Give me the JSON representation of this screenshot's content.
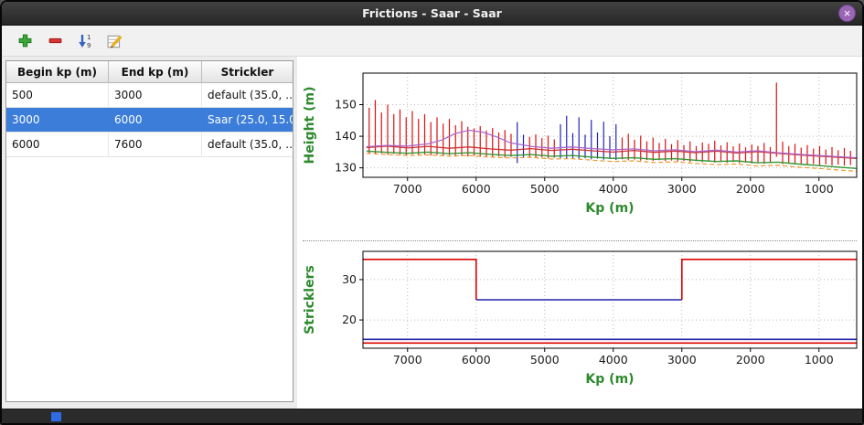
{
  "window": {
    "title": "Frictions - Saar - Saar",
    "close_glyph": "×"
  },
  "toolbar": {
    "sort_digits": [
      "1",
      "9"
    ]
  },
  "table": {
    "columns": [
      "Begin kp (m)",
      "End kp (m)",
      "Strickler"
    ],
    "rows": [
      {
        "begin": "500",
        "end": "3000",
        "strickler": "default (35.0, …",
        "selected": false
      },
      {
        "begin": "3000",
        "end": "6000",
        "strickler": "Saar (25.0, 15.0)",
        "selected": true
      },
      {
        "begin": "6000",
        "end": "7600",
        "strickler": "default (35.0, …",
        "selected": false
      }
    ]
  },
  "colors": {
    "selection": "#3b7dd8",
    "axis_label": "#2d8a2d",
    "spike_red": "#dd1111",
    "spike_blue": "#2222bb"
  },
  "chart_data": [
    {
      "type": "line",
      "title": "",
      "xlabel": "Kp (m)",
      "ylabel": "Height (m)",
      "xlim": [
        7650,
        450
      ],
      "ylim": [
        127,
        160
      ],
      "x_ticks": [
        7000,
        6000,
        5000,
        4000,
        3000,
        2000,
        1000
      ],
      "y_ticks": [
        130,
        140,
        150
      ],
      "grid": true,
      "legend": "none",
      "spike_colors": {
        "r": "#dd1111",
        "b": "#2222bb"
      },
      "spikes": [
        [
          7560,
          134.5,
          149.0,
          "r"
        ],
        [
          7470,
          134.3,
          151.5,
          "r"
        ],
        [
          7380,
          134.6,
          147.5,
          "r"
        ],
        [
          7290,
          134.2,
          150.0,
          "r"
        ],
        [
          7200,
          134.4,
          147.0,
          "r"
        ],
        [
          7110,
          134.2,
          148.5,
          "r"
        ],
        [
          7020,
          134.0,
          146.0,
          "r"
        ],
        [
          6930,
          134.3,
          148.0,
          "r"
        ],
        [
          6840,
          134.0,
          145.5,
          "r"
        ],
        [
          6750,
          134.2,
          147.0,
          "r"
        ],
        [
          6660,
          133.9,
          144.5,
          "r"
        ],
        [
          6570,
          134.1,
          146.0,
          "r"
        ],
        [
          6480,
          133.8,
          144.0,
          "r"
        ],
        [
          6390,
          134.0,
          145.5,
          "r"
        ],
        [
          6300,
          133.7,
          143.5,
          "r"
        ],
        [
          6210,
          133.9,
          144.8,
          "r"
        ],
        [
          6120,
          133.6,
          143.0,
          "r"
        ],
        [
          6030,
          133.8,
          142.5,
          "r"
        ],
        [
          5940,
          133.5,
          143.2,
          "r"
        ],
        [
          5850,
          133.7,
          141.8,
          "r"
        ],
        [
          5760,
          133.4,
          142.6,
          "r"
        ],
        [
          5670,
          133.6,
          141.2,
          "r"
        ],
        [
          5580,
          133.3,
          142.0,
          "r"
        ],
        [
          5490,
          133.5,
          140.8,
          "r"
        ],
        [
          5400,
          131.5,
          144.5,
          "b"
        ],
        [
          5310,
          133.2,
          140.5,
          "b"
        ],
        [
          5220,
          133.4,
          139.8,
          "r"
        ],
        [
          5130,
          133.1,
          140.6,
          "r"
        ],
        [
          5040,
          133.3,
          139.4,
          "r"
        ],
        [
          4950,
          133.0,
          140.2,
          "r"
        ],
        [
          4860,
          133.2,
          139.0,
          "r"
        ],
        [
          4770,
          133.0,
          143.8,
          "b"
        ],
        [
          4680,
          132.9,
          146.5,
          "b"
        ],
        [
          4590,
          133.1,
          141.0,
          "b"
        ],
        [
          4500,
          132.8,
          146.0,
          "b"
        ],
        [
          4410,
          133.0,
          140.5,
          "b"
        ],
        [
          4320,
          132.7,
          145.2,
          "b"
        ],
        [
          4230,
          132.9,
          141.2,
          "b"
        ],
        [
          4140,
          132.6,
          144.6,
          "b"
        ],
        [
          4050,
          132.8,
          140.0,
          "b"
        ],
        [
          3960,
          132.5,
          143.8,
          "b"
        ],
        [
          3870,
          132.7,
          139.6,
          "r"
        ],
        [
          3780,
          132.4,
          140.8,
          "r"
        ],
        [
          3690,
          132.6,
          138.9,
          "r"
        ],
        [
          3600,
          132.3,
          140.2,
          "r"
        ],
        [
          3510,
          132.5,
          138.4,
          "r"
        ],
        [
          3420,
          132.2,
          139.6,
          "r"
        ],
        [
          3330,
          132.4,
          137.9,
          "r"
        ],
        [
          3240,
          132.1,
          139.2,
          "r"
        ],
        [
          3150,
          132.3,
          137.5,
          "r"
        ],
        [
          3060,
          132.0,
          138.8,
          "r"
        ],
        [
          2970,
          132.2,
          137.2,
          "r"
        ],
        [
          2880,
          131.9,
          138.4,
          "r"
        ],
        [
          2790,
          132.1,
          136.9,
          "r"
        ],
        [
          2700,
          131.8,
          138.0,
          "r"
        ],
        [
          2610,
          132.0,
          137.6,
          "r"
        ],
        [
          2520,
          131.7,
          138.6,
          "r"
        ],
        [
          2430,
          131.9,
          137.1,
          "r"
        ],
        [
          2340,
          131.6,
          138.1,
          "r"
        ],
        [
          2250,
          131.8,
          136.8,
          "r"
        ],
        [
          2160,
          131.5,
          137.7,
          "r"
        ],
        [
          2070,
          131.7,
          136.5,
          "r"
        ],
        [
          1980,
          131.4,
          137.4,
          "r"
        ],
        [
          1890,
          131.6,
          136.9,
          "r"
        ],
        [
          1800,
          131.3,
          137.9,
          "r"
        ],
        [
          1710,
          131.5,
          136.6,
          "r"
        ],
        [
          1620,
          133.5,
          157.0,
          "r"
        ],
        [
          1530,
          131.2,
          138.3,
          "r"
        ],
        [
          1440,
          131.4,
          136.9,
          "r"
        ],
        [
          1350,
          131.1,
          137.6,
          "r"
        ],
        [
          1260,
          131.3,
          136.4,
          "r"
        ],
        [
          1170,
          131.0,
          137.2,
          "r"
        ],
        [
          1080,
          131.2,
          136.1,
          "r"
        ],
        [
          990,
          130.9,
          136.9,
          "r"
        ],
        [
          900,
          131.1,
          135.8,
          "r"
        ],
        [
          810,
          130.8,
          136.6,
          "r"
        ],
        [
          720,
          131.0,
          135.6,
          "r"
        ],
        [
          630,
          130.7,
          136.3,
          "r"
        ],
        [
          540,
          130.9,
          135.4,
          "r"
        ]
      ],
      "lines": [
        {
          "name": "red-profile",
          "color": "#cc3333",
          "width": 1.3,
          "dash": false,
          "points": [
            [
              7600,
              136.4
            ],
            [
              7300,
              136.9
            ],
            [
              7000,
              136.3
            ],
            [
              6700,
              136.8
            ],
            [
              6400,
              136.2
            ],
            [
              6100,
              136.6
            ],
            [
              5800,
              136.0
            ],
            [
              5500,
              135.6
            ],
            [
              5200,
              136.1
            ],
            [
              4900,
              135.5
            ],
            [
              4600,
              135.9
            ],
            [
              4300,
              135.4
            ],
            [
              4000,
              135.0
            ],
            [
              3700,
              135.5
            ],
            [
              3400,
              134.9
            ],
            [
              3100,
              135.3
            ],
            [
              2800,
              134.8
            ],
            [
              2500,
              135.3
            ],
            [
              2200,
              134.7
            ],
            [
              1900,
              135.1
            ],
            [
              1600,
              134.6
            ],
            [
              1300,
              134.1
            ],
            [
              1000,
              133.7
            ],
            [
              700,
              133.3
            ],
            [
              450,
              133.0
            ]
          ]
        },
        {
          "name": "purple-profile",
          "color": "#aa66cc",
          "width": 1.3,
          "dash": false,
          "points": [
            [
              7600,
              136.7
            ],
            [
              7300,
              137.1
            ],
            [
              7000,
              136.9
            ],
            [
              6700,
              137.6
            ],
            [
              6500,
              138.8
            ],
            [
              6300,
              140.9
            ],
            [
              6100,
              141.9
            ],
            [
              5900,
              141.3
            ],
            [
              5700,
              139.8
            ],
            [
              5500,
              137.9
            ],
            [
              5200,
              136.8
            ],
            [
              4900,
              136.2
            ],
            [
              4600,
              136.6
            ],
            [
              4300,
              136.1
            ],
            [
              4000,
              135.7
            ],
            [
              3700,
              136.0
            ],
            [
              3400,
              135.4
            ],
            [
              3100,
              135.7
            ],
            [
              2800,
              135.1
            ],
            [
              2500,
              135.6
            ],
            [
              2200,
              135.0
            ],
            [
              1900,
              135.4
            ],
            [
              1600,
              134.8
            ],
            [
              1300,
              134.3
            ],
            [
              1000,
              133.9
            ],
            [
              700,
              133.5
            ],
            [
              450,
              133.2
            ]
          ]
        },
        {
          "name": "green-profile",
          "color": "#339933",
          "width": 1.4,
          "dash": false,
          "points": [
            [
              7600,
              135.3
            ],
            [
              7300,
              134.9
            ],
            [
              7000,
              134.6
            ],
            [
              6700,
              135.0
            ],
            [
              6400,
              134.5
            ],
            [
              6100,
              134.8
            ],
            [
              5800,
              134.3
            ],
            [
              5500,
              133.9
            ],
            [
              5200,
              134.2
            ],
            [
              4900,
              133.7
            ],
            [
              4600,
              133.9
            ],
            [
              4300,
              133.4
            ],
            [
              4000,
              133.0
            ],
            [
              3700,
              133.2
            ],
            [
              3400,
              132.7
            ],
            [
              3100,
              132.9
            ],
            [
              2800,
              132.4
            ],
            [
              2500,
              132.0
            ],
            [
              2200,
              132.2
            ],
            [
              1900,
              131.6
            ],
            [
              1600,
              131.8
            ],
            [
              1300,
              131.2
            ],
            [
              1000,
              130.7
            ],
            [
              700,
              130.2
            ],
            [
              450,
              129.8
            ]
          ]
        },
        {
          "name": "orange-profile",
          "color": "#ee9933",
          "width": 1.2,
          "dash": true,
          "points": [
            [
              7600,
              134.6
            ],
            [
              7300,
              134.2
            ],
            [
              7000,
              133.9
            ],
            [
              6700,
              134.1
            ],
            [
              6400,
              133.7
            ],
            [
              6100,
              133.9
            ],
            [
              5800,
              133.4
            ],
            [
              5500,
              133.1
            ],
            [
              5200,
              133.3
            ],
            [
              4900,
              132.8
            ],
            [
              4600,
              132.9
            ],
            [
              4300,
              132.4
            ],
            [
              4000,
              132.0
            ],
            [
              3700,
              132.2
            ],
            [
              3400,
              131.7
            ],
            [
              3100,
              131.9
            ],
            [
              2800,
              131.4
            ],
            [
              2500,
              131.0
            ],
            [
              2200,
              131.2
            ],
            [
              1900,
              130.6
            ],
            [
              1600,
              130.8
            ],
            [
              1300,
              130.2
            ],
            [
              1000,
              129.8
            ],
            [
              700,
              129.3
            ],
            [
              450,
              128.9
            ]
          ]
        }
      ]
    },
    {
      "type": "step",
      "title": "",
      "xlabel": "Kp (m)",
      "ylabel": "Stricklers",
      "xlim": [
        7650,
        450
      ],
      "ylim": [
        13,
        37
      ],
      "x_ticks": [
        7000,
        6000,
        5000,
        4000,
        3000,
        2000,
        1000
      ],
      "y_ticks": [
        20,
        30
      ],
      "grid": true,
      "legend": "none",
      "spikes": [],
      "lines": [
        {
          "name": "default-minor-bed",
          "color": "#dd0000",
          "width": 1.6,
          "dash": false,
          "points": [
            [
              7650,
              35
            ],
            [
              6000,
              35
            ],
            [
              6000,
              25
            ]
          ]
        },
        {
          "name": "default-minor-bed-2",
          "color": "#dd0000",
          "width": 1.6,
          "dash": false,
          "points": [
            [
              3000,
              25
            ],
            [
              3000,
              35
            ],
            [
              450,
              35
            ]
          ]
        },
        {
          "name": "saar-minor-bed",
          "color": "#2222aa",
          "width": 1.6,
          "dash": false,
          "points": [
            [
              6000,
              25
            ],
            [
              3000,
              25
            ]
          ]
        },
        {
          "name": "saar-medium-bed",
          "color": "#2222aa",
          "width": 1.6,
          "dash": false,
          "points": [
            [
              7650,
              15.2
            ],
            [
              450,
              15.2
            ]
          ]
        },
        {
          "name": "default-medium-bed",
          "color": "#dd0000",
          "width": 1.6,
          "dash": false,
          "points": [
            [
              7650,
              14.3
            ],
            [
              450,
              14.3
            ]
          ]
        }
      ]
    }
  ]
}
